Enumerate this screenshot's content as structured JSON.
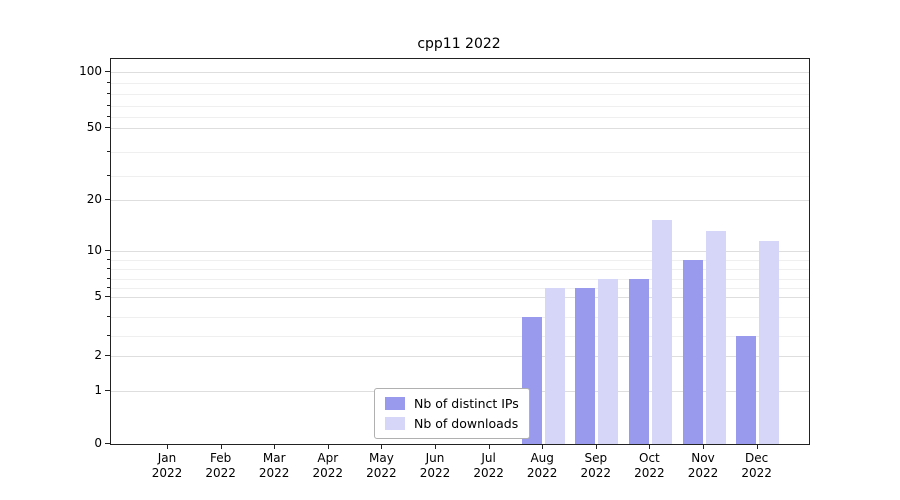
{
  "title": "cpp11 2022",
  "chart_data": {
    "type": "bar",
    "title": "cpp11 2022",
    "categories": [
      "Jan",
      "Feb",
      "Mar",
      "Apr",
      "May",
      "Jun",
      "Jul",
      "Aug",
      "Sep",
      "Oct",
      "Nov",
      "Dec"
    ],
    "year_label": "2022",
    "series": [
      {
        "name": "Nb of distinct IPs",
        "color": "#9999ee",
        "values": [
          null,
          null,
          null,
          null,
          null,
          null,
          null,
          4,
          6,
          7,
          9,
          3
        ]
      },
      {
        "name": "Nb of downloads",
        "color": "#d6d6f8",
        "values": [
          null,
          null,
          null,
          null,
          null,
          null,
          null,
          6,
          7,
          16,
          14,
          12
        ]
      }
    ],
    "ylabel": "",
    "xlabel": "",
    "yticks": [
      0,
      1,
      2,
      5,
      10,
      20,
      50,
      100
    ],
    "minor_yticks": [
      3,
      4,
      6,
      7,
      8,
      9,
      30,
      40,
      60,
      70,
      80,
      90
    ],
    "scale_anchors": {
      "values": [
        0,
        1,
        2,
        5,
        10,
        20,
        50,
        100
      ],
      "fractions": [
        0,
        0.138,
        0.229,
        0.382,
        0.501,
        0.634,
        0.821,
        0.966
      ]
    },
    "grid": true,
    "legend_position": "bottom-center"
  },
  "legend": {
    "items": [
      {
        "label": "Nb of distinct IPs"
      },
      {
        "label": "Nb of downloads"
      }
    ]
  }
}
